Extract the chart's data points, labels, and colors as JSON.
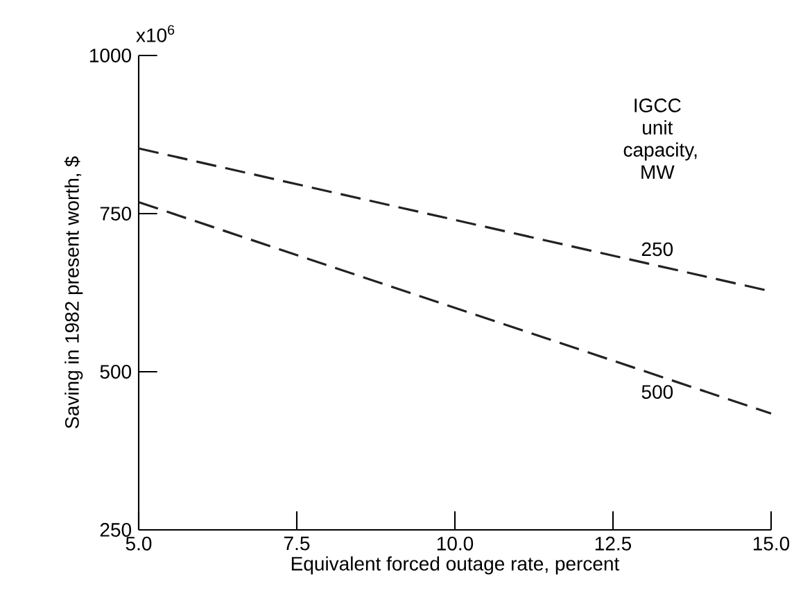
{
  "chart_data": {
    "type": "line",
    "xlabel": "Equivalent forced outage rate, percent",
    "ylabel": "Saving in 1982 present worth, $",
    "legend_title": "IGCC unit capacity, MW",
    "x": [
      5.0,
      15.0
    ],
    "series": [
      {
        "name": "250",
        "color": "#222222",
        "values": [
          853,
          627
        ]
      },
      {
        "name": "500",
        "color": "#222222",
        "values": [
          768,
          434
        ]
      }
    ],
    "xlim": [
      5.0,
      15.0
    ],
    "ylim": [
      250,
      1000
    ],
    "xticks": [
      {
        "value": 5.0,
        "label": "5.0"
      },
      {
        "value": 7.5,
        "label": "7.5"
      },
      {
        "value": 10.0,
        "label": "10.0"
      },
      {
        "value": 12.5,
        "label": "12.5"
      },
      {
        "value": 15.0,
        "label": "15.0"
      }
    ],
    "yticks": [
      250,
      500,
      750,
      1000
    ],
    "annotations": [
      "x10$^{6}$"
    ],
    "grid": false,
    "marker": "none",
    "line_style": "dashed"
  }
}
